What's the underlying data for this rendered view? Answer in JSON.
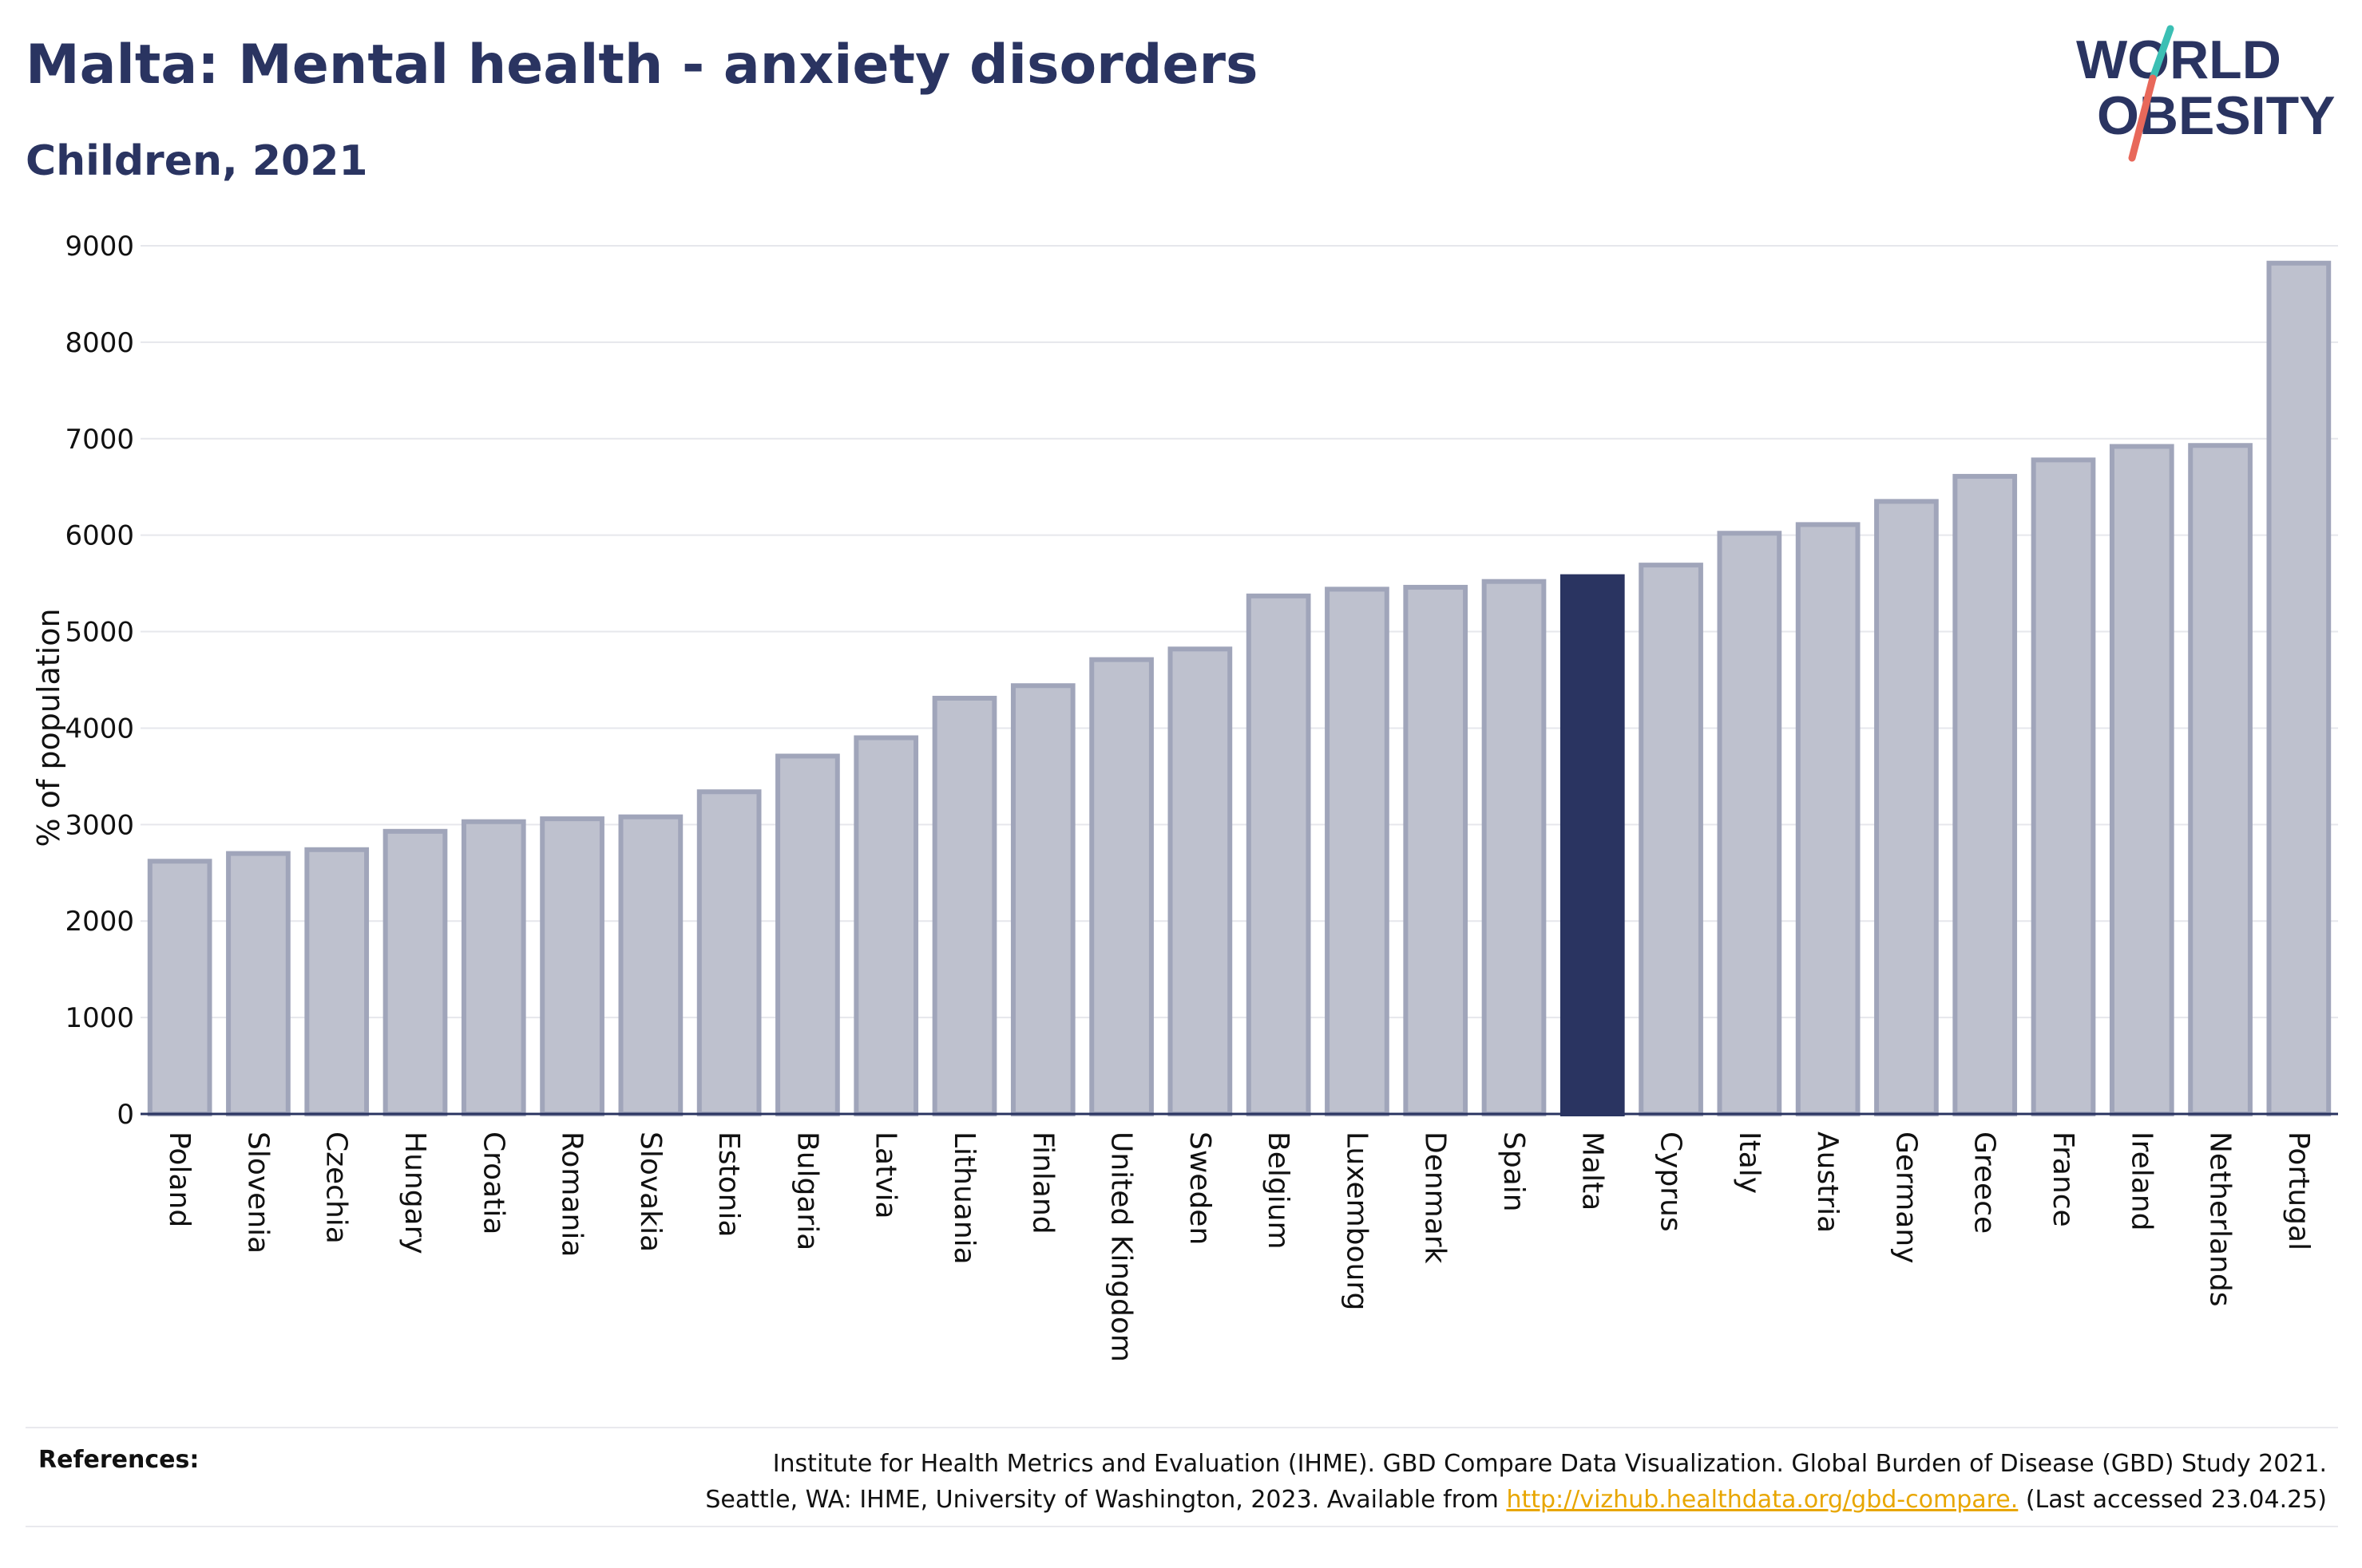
{
  "header": {
    "title": "Malta: Mental health - anxiety disorders",
    "subtitle": "Children, 2021"
  },
  "logo": {
    "line1": "WORLD",
    "line2": "OBESITY",
    "text_color": "#2a3461",
    "slash_colors": [
      "#3bbfb4",
      "#e8685a"
    ]
  },
  "chart_data": {
    "type": "bar",
    "ylabel": "% of population",
    "ylim": [
      0,
      9000
    ],
    "yticks": [
      0,
      1000,
      2000,
      3000,
      4000,
      5000,
      6000,
      7000,
      8000,
      9000
    ],
    "grid": true,
    "highlight": "Malta",
    "colors": {
      "bar": "#bec1ce",
      "bar_border": "#a0a5ba",
      "highlight": "#2a3461",
      "axis": "#2a3461"
    },
    "categories": [
      "Poland",
      "Slovenia",
      "Czechia",
      "Hungary",
      "Croatia",
      "Romania",
      "Slovakia",
      "Estonia",
      "Bulgaria",
      "Latvia",
      "Lithuania",
      "Finland",
      "United Kingdom",
      "Sweden",
      "Belgium",
      "Luxembourg",
      "Denmark",
      "Spain",
      "Malta",
      "Cyprus",
      "Italy",
      "Austria",
      "Germany",
      "Greece",
      "France",
      "Ireland",
      "Netherlands",
      "Portugal"
    ],
    "values": [
      2620,
      2700,
      2740,
      2930,
      3030,
      3060,
      3080,
      3340,
      3710,
      3900,
      4310,
      4440,
      4710,
      4820,
      5370,
      5440,
      5460,
      5520,
      5570,
      5690,
      6020,
      6110,
      6350,
      6610,
      6780,
      6920,
      6930,
      8820
    ]
  },
  "footer": {
    "references_label": "References:",
    "line1": "Institute for Health Metrics and Evaluation (IHME). GBD Compare Data Visualization. Global Burden of Disease (GBD) Study 2021.",
    "line2_prefix": "Seattle, WA: IHME, University of Washington, 2023. Available from ",
    "link": "http://vizhub.healthdata.org/gbd-compare.",
    "line2_suffix": " (Last accessed 23.04.25)"
  }
}
